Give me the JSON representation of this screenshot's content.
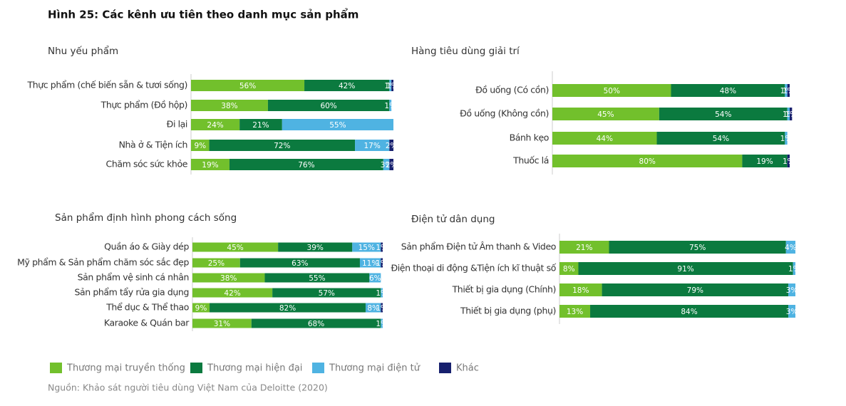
{
  "title": "Hình 25: Các kênh ưu tiên theo danh mục sản phẩm",
  "source": "Nguồn: Khảo sát người tiêu dùng Việt Nam của Deloitte (2020)",
  "legend": [
    {
      "name": "Thương mại truyền thống",
      "color": "#72c02c"
    },
    {
      "name": "Thương mại hiện đại",
      "color": "#0b7a3f"
    },
    {
      "name": "Thương mại điện tử",
      "color": "#4fb3e2"
    },
    {
      "name": "Khác",
      "color": "#17206e"
    }
  ],
  "chart_data": [
    {
      "type": "bar",
      "orientation": "horizontal",
      "stacked": true,
      "title": "Nhu yếu phẩm",
      "xlim": [
        0,
        100
      ],
      "categories": [
        "Thực phẩm (chế biến sẵn & tươi sống)",
        "Thực phẩm (Đồ hộp)",
        "Đi lại",
        "Nhà ở & Tiện ích",
        "Chăm sóc sức khỏe"
      ],
      "series": [
        {
          "values": [
            56,
            38,
            24,
            9,
            19
          ],
          "value_labels": [
            "56%",
            "38%",
            "24%",
            "9%",
            "19%"
          ]
        },
        {
          "values": [
            42,
            60,
            21,
            72,
            76
          ],
          "value_labels": [
            "42%",
            "60%",
            "21%",
            "72%",
            "76%"
          ]
        },
        {
          "values": [
            1,
            1,
            55,
            17,
            3
          ],
          "value_labels": [
            "1%",
            "1%",
            "55%",
            "17%",
            "3%"
          ]
        },
        {
          "values": [
            1,
            null,
            null,
            2,
            2
          ],
          "value_labels": [
            "1%",
            null,
            null,
            "2%",
            "2%"
          ]
        }
      ]
    },
    {
      "type": "bar",
      "orientation": "horizontal",
      "stacked": true,
      "title": "Hàng tiêu dùng giải trí",
      "xlim": [
        0,
        100
      ],
      "categories": [
        "Đồ uống (Có cồn)",
        "Đồ uống (Không cồn)",
        "Bánh kẹo",
        "Thuốc lá"
      ],
      "series": [
        {
          "values": [
            50,
            45,
            44,
            80
          ],
          "value_labels": [
            "50%",
            "45%",
            "44%",
            "80%"
          ]
        },
        {
          "values": [
            48,
            54,
            54,
            19
          ],
          "value_labels": [
            "48%",
            "54%",
            "54%",
            "19%"
          ]
        },
        {
          "values": [
            1,
            1,
            1,
            null
          ],
          "value_labels": [
            "1%",
            "1%",
            "1%",
            null
          ]
        },
        {
          "values": [
            1,
            1,
            null,
            1
          ],
          "value_labels": [
            "1%",
            "1%",
            null,
            "1%"
          ]
        }
      ]
    },
    {
      "type": "bar",
      "orientation": "horizontal",
      "stacked": true,
      "title": "Sản phẩm định hình phong cách sống",
      "xlim": [
        0,
        100
      ],
      "categories": [
        "Quần áo & Giày dép",
        "Mỹ phẩm & Sản phẩm chăm sóc sắc đẹp",
        "Sản phẩm vệ sinh cá nhân",
        "Sản phẩm tẩy rửa gia dụng",
        "Thể dục & Thể thao",
        "Karaoke & Quán bar"
      ],
      "series": [
        {
          "values": [
            45,
            25,
            38,
            42,
            9,
            31
          ],
          "value_labels": [
            "45%",
            "25%",
            "38%",
            "42%",
            "9%",
            "31%"
          ]
        },
        {
          "values": [
            39,
            63,
            55,
            57,
            82,
            68
          ],
          "value_labels": [
            "39%",
            "63%",
            "55%",
            "57%",
            "82%",
            "68%"
          ]
        },
        {
          "values": [
            15,
            11,
            6,
            1,
            8,
            1
          ],
          "value_labels": [
            "15%",
            "11%",
            "6%",
            "1%",
            "8%",
            "1%"
          ]
        },
        {
          "values": [
            1,
            1,
            null,
            null,
            1,
            null
          ],
          "value_labels": [
            "1%",
            "1%",
            null,
            null,
            "1%",
            null
          ]
        }
      ]
    },
    {
      "type": "bar",
      "orientation": "horizontal",
      "stacked": true,
      "title": "Điện tử dân dụng",
      "xlim": [
        0,
        100
      ],
      "categories": [
        "Sản phẩm Điện tử Âm thanh & Video",
        "Điện thoại di động &Tiện ích kĩ thuật số",
        "Thiết bị gia dụng (Chính)",
        "Thiết bị gia dụng (phụ)"
      ],
      "series": [
        {
          "values": [
            21,
            8,
            18,
            13
          ],
          "value_labels": [
            "21%",
            "8%",
            "18%",
            "13%"
          ]
        },
        {
          "values": [
            75,
            91,
            79,
            84
          ],
          "value_labels": [
            "75%",
            "91%",
            "79%",
            "84%"
          ]
        },
        {
          "values": [
            4,
            1,
            3,
            3
          ],
          "value_labels": [
            "4%",
            "1%",
            "3%",
            "3%"
          ]
        },
        {
          "values": [
            null,
            null,
            null,
            null
          ],
          "value_labels": [
            null,
            null,
            null,
            null
          ]
        }
      ]
    }
  ]
}
